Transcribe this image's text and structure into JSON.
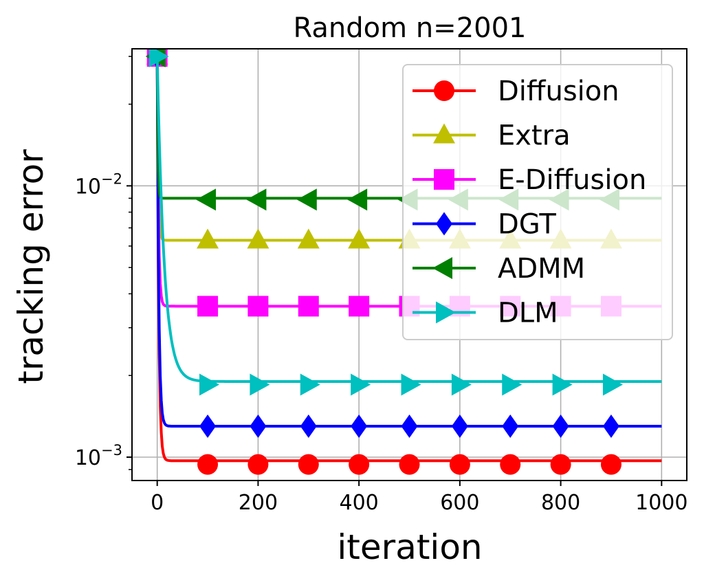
{
  "chart_data": {
    "type": "line",
    "title": "Random n=2001",
    "xlabel": "iteration",
    "ylabel": "tracking error",
    "yscale": "log",
    "xlim": [
      -50,
      1050
    ],
    "ylim": [
      0.00082,
      0.032
    ],
    "xticks": [
      0,
      200,
      400,
      600,
      800,
      1000
    ],
    "xtick_labels": [
      "0",
      "200",
      "400",
      "600",
      "800",
      "1000"
    ],
    "yticks": [
      0.001,
      0.01
    ],
    "ytick_labels": [
      {
        "base": "10",
        "exp": "−3"
      },
      {
        "base": "10",
        "exp": "−2"
      }
    ],
    "grid": true,
    "legend_position": "top-right",
    "series": [
      {
        "name": "Diffusion",
        "color": "#ff0000",
        "marker": "circle",
        "start": 0.03,
        "plateau": 0.00097,
        "settle": 12,
        "marker_values": [
          0.03,
          0.00094,
          0.00094,
          0.00094,
          0.00094,
          0.00094,
          0.00094,
          0.00094,
          0.00094,
          0.00094
        ]
      },
      {
        "name": "Extra",
        "color": "#bfbf00",
        "marker": "triangle-up",
        "start": 0.03,
        "plateau": 0.0063,
        "settle": 8,
        "marker_values": [
          0.03,
          0.0063,
          0.0063,
          0.0063,
          0.0063,
          0.0063,
          0.0063,
          0.0063,
          0.0063,
          0.0063
        ]
      },
      {
        "name": "E-Diffusion",
        "color": "#ff00ff",
        "marker": "square",
        "start": 0.03,
        "plateau": 0.0036,
        "settle": 10,
        "marker_values": [
          0.03,
          0.0036,
          0.0036,
          0.0036,
          0.0036,
          0.0036,
          0.0036,
          0.0036,
          0.0036,
          0.0036
        ]
      },
      {
        "name": "DGT",
        "color": "#0000ff",
        "marker": "diamond",
        "start": 0.03,
        "plateau": 0.0013,
        "settle": 12,
        "marker_values": [
          0.03,
          0.0013,
          0.0013,
          0.0013,
          0.0013,
          0.0013,
          0.0013,
          0.0013,
          0.0013,
          0.0013
        ]
      },
      {
        "name": "ADMM",
        "color": "#008000",
        "marker": "triangle-left",
        "start": 0.03,
        "plateau": 0.009,
        "settle": 5,
        "marker_values": [
          0.03,
          0.0089,
          0.0089,
          0.0089,
          0.0089,
          0.0089,
          0.0089,
          0.0089,
          0.0089,
          0.0089
        ]
      },
      {
        "name": "DLM",
        "color": "#00bfbf",
        "marker": "triangle-right",
        "start": 0.03,
        "plateau": 0.0019,
        "settle": 55,
        "marker_values": [
          0.03,
          0.00185,
          0.00185,
          0.00185,
          0.00185,
          0.00185,
          0.00185,
          0.00185,
          0.00185,
          0.00185
        ]
      }
    ],
    "marker_x": [
      0,
      100,
      200,
      300,
      400,
      500,
      600,
      700,
      800,
      900
    ],
    "x_end": 1000
  }
}
